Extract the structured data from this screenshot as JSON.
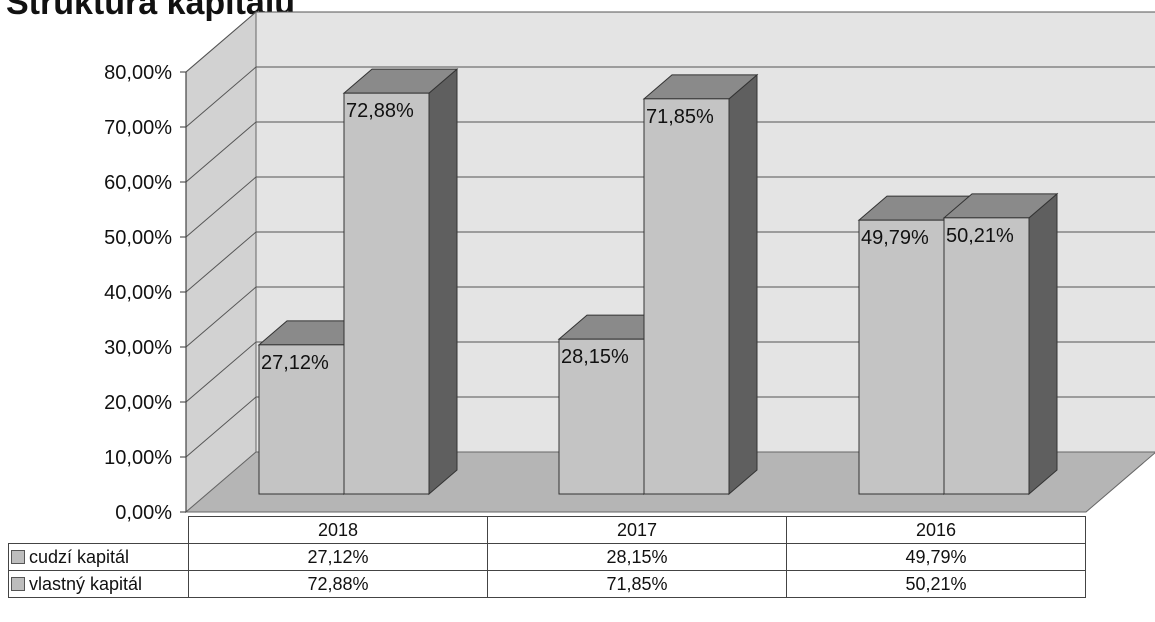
{
  "chart_data": {
    "type": "bar",
    "title": "Štruktúra kapitálu",
    "categories": [
      "2018",
      "2017",
      "2016"
    ],
    "series": [
      {
        "name": "cudzí kapitál",
        "values": [
          27.12,
          28.15,
          49.79
        ],
        "labels": [
          "27,12%",
          "28,15%",
          "49,79%"
        ]
      },
      {
        "name": "vlastný kapitál",
        "values": [
          72.88,
          71.85,
          50.21
        ],
        "labels": [
          "72,88%",
          "71,85%",
          "50,21%"
        ]
      }
    ],
    "ylim": [
      0,
      80
    ],
    "yticks": [
      "0,00%",
      "10,00%",
      "20,00%",
      "30,00%",
      "40,00%",
      "50,00%",
      "60,00%",
      "70,00%",
      "80,00%"
    ],
    "grid": true,
    "three_d": true,
    "legend": "data table below chart",
    "colors": {
      "bar_face": "#c4c4c4",
      "bar_side": "#5f5f5f",
      "bar_top": "#8a8a8a",
      "wall": "#e4e4e4",
      "floor": "#b5b5b5"
    }
  }
}
